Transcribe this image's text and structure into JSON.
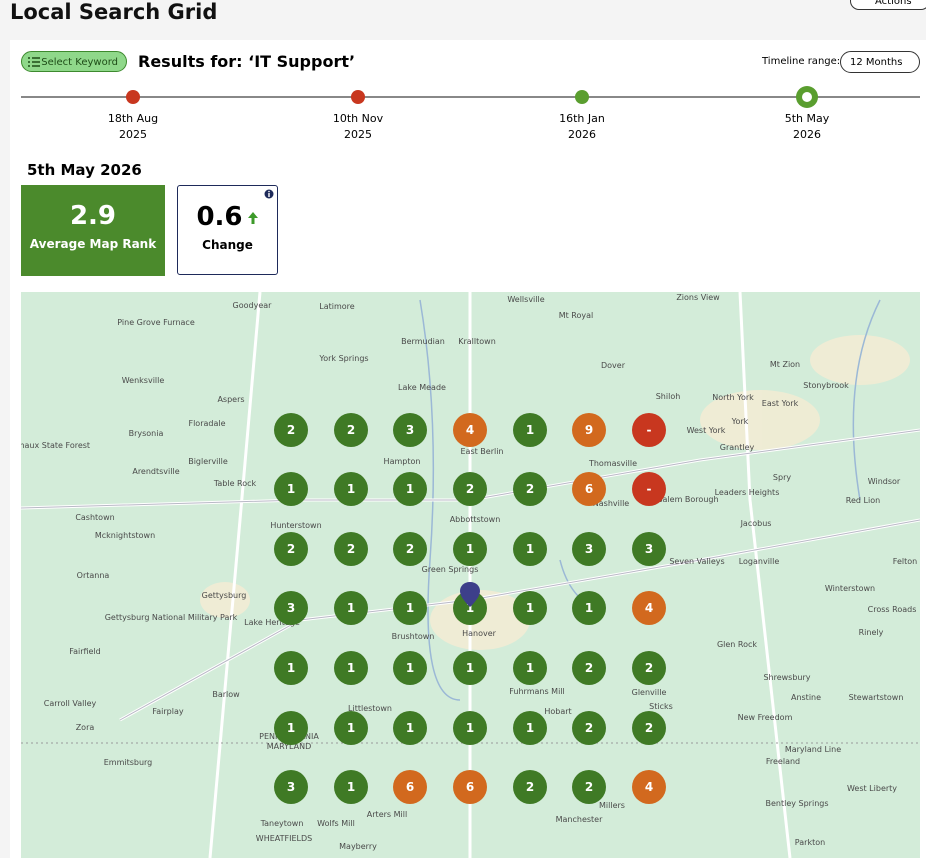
{
  "header": {
    "title": "Local Search Grid",
    "actions": "Actions"
  },
  "toolbar": {
    "keyword_button": "Select Keyword",
    "results_label": "Results for: ‘IT Support’",
    "timeline_range_label": "Timeline range:",
    "timeline_range_value": "12 Months"
  },
  "timeline": {
    "points": [
      {
        "day": "18th Aug",
        "year": "2025",
        "color": "#c8371f"
      },
      {
        "day": "10th Nov",
        "year": "2025",
        "color": "#c8371f"
      },
      {
        "day": "16th Jan",
        "year": "2026",
        "color": "#5a9e2f"
      },
      {
        "day": "5th May",
        "year": "2026",
        "color": "#5a9e2f",
        "selected": true
      }
    ]
  },
  "summary": {
    "date": "5th May 2026",
    "average_rank": {
      "value": 2.9,
      "label": "Average Map Rank"
    },
    "change": {
      "value": 0.6,
      "label": "Change",
      "direction": "up"
    }
  },
  "map": {
    "labels": [
      "Goodyear",
      "Latimore",
      "Wellsville",
      "Zions View",
      "Pine Grove Furnace",
      "Mt Royal",
      "Bermudian",
      "Kralltown",
      "York Springs",
      "Dover",
      "Mt Zion",
      "Stonybrook",
      "Wenksville",
      "Lake Meade",
      "Shiloh",
      "North York",
      "Aspers",
      "East York",
      "York",
      "Floradale",
      "West York",
      "Brysonia",
      "Michaux State Forest",
      "Grantley",
      "East Berlin",
      "Hampton",
      "Biglerville",
      "Arendtsville",
      "Thomasville",
      "Spry",
      "Table Rock",
      "Windsor",
      "Leaders Heights",
      "New Salem Borough",
      "Nashville",
      "Red Lion",
      "Cashtown",
      "Abbottstown",
      "Hunterstown",
      "Jacobus",
      "Mcknightstown",
      "Seven Valleys",
      "Loganville",
      "Felton",
      "Green Springs",
      "Ortanna",
      "Gettysburg",
      "Winterstown",
      "Gettysburg National Military Park",
      "Lake Heritage",
      "Brushtown",
      "Hanover",
      "Cross Roads",
      "Rinely",
      "Glen Rock",
      "Fairfield",
      "Shrewsbury",
      "Fuhrmans Mill",
      "Barlow",
      "Glenville",
      "Anstine",
      "Stewartstown",
      "Carroll Valley",
      "Fairplay",
      "Littlestown",
      "Hobart",
      "Sticks",
      "New Freedom",
      "Zora",
      "PENNSYLVANIA",
      "MARYLAND",
      "Manchester",
      "Millers",
      "Maryland Line",
      "Freeland",
      "Emmitsburg",
      "West Liberty",
      "Bentley Springs",
      "Taneytown",
      "Wolfs Mill",
      "Arters Mill",
      "Parkton",
      "WHEATFIELDS",
      "Mayberry"
    ],
    "grid": [
      [
        2,
        2,
        3,
        4,
        1,
        9,
        "-"
      ],
      [
        1,
        1,
        1,
        2,
        2,
        6,
        "-"
      ],
      [
        2,
        2,
        2,
        1,
        1,
        3,
        3
      ],
      [
        3,
        1,
        1,
        1,
        1,
        1,
        4
      ],
      [
        1,
        1,
        1,
        1,
        1,
        2,
        2
      ],
      [
        1,
        1,
        1,
        1,
        1,
        2,
        2
      ],
      [
        3,
        1,
        6,
        6,
        2,
        2,
        4
      ]
    ]
  }
}
